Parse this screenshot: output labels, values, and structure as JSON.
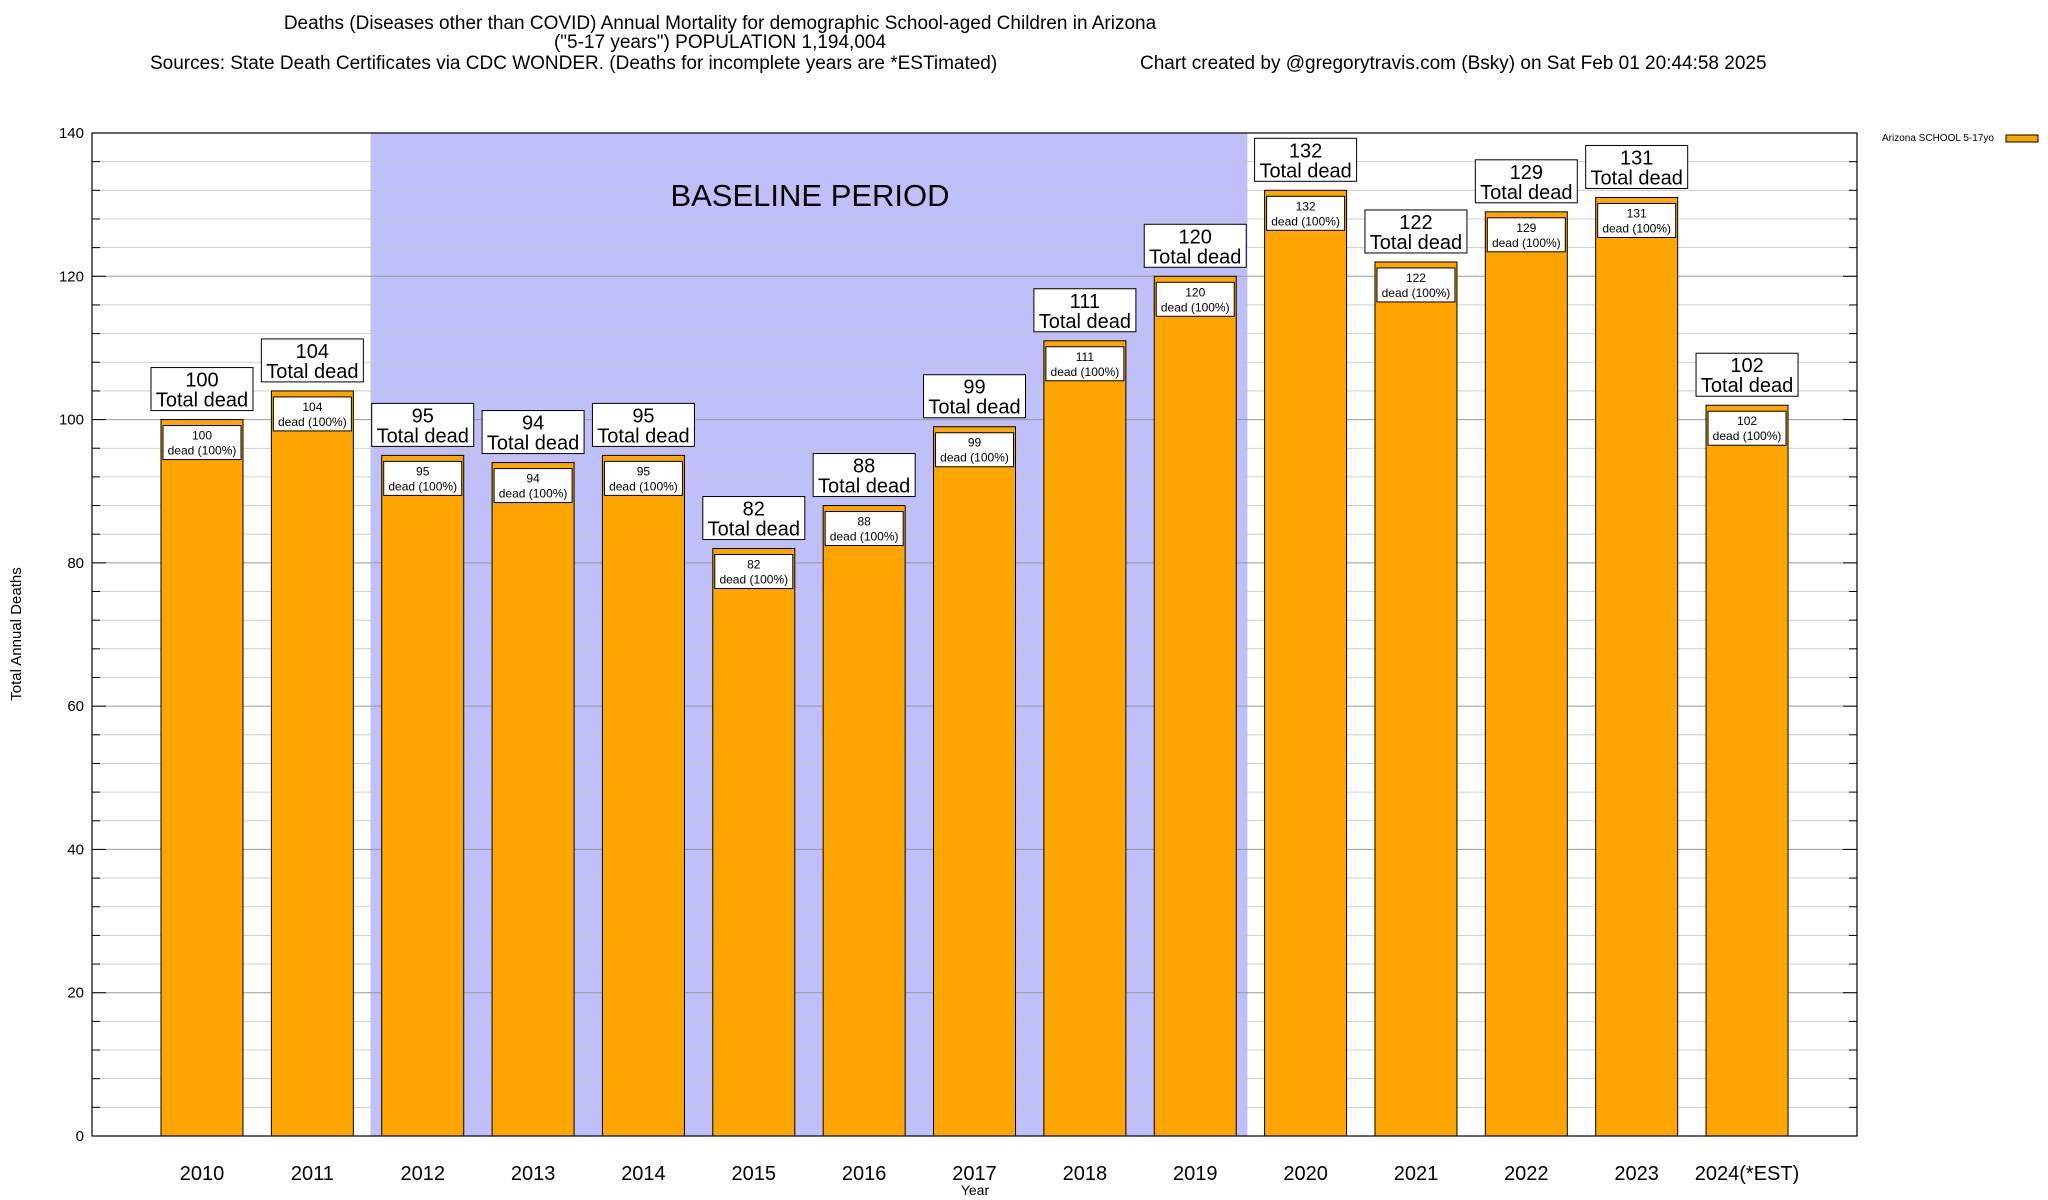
{
  "chart_data": {
    "type": "bar",
    "title": "Deaths (Diseases other than COVID) Annual Mortality for demographic School-aged Children in Arizona",
    "subtitle": "(\"5-17 years\") POPULATION 1,194,004",
    "source": "Sources: State Death Certificates via CDC WONDER. (Deaths for incomplete years are *ESTimated)",
    "credit": "Chart created by @gregorytravis.com (Bsky) on Sat Feb 01 20:44:58 2025",
    "xlabel": "Year",
    "ylabel": "Total Annual Deaths",
    "ylim": [
      0,
      140
    ],
    "yticks": [
      0,
      20,
      40,
      60,
      80,
      100,
      120,
      140
    ],
    "minor_tick_step": 4,
    "grid": true,
    "legend_position": "top-right",
    "series": [
      {
        "name": "Arizona SCHOOL 5-17yo",
        "color": "#ffa500",
        "values": [
          100,
          104,
          95,
          94,
          95,
          82,
          88,
          99,
          111,
          120,
          132,
          122,
          129,
          131,
          102
        ]
      }
    ],
    "categories": [
      "2010",
      "2011",
      "2012",
      "2013",
      "2014",
      "2015",
      "2016",
      "2017",
      "2018",
      "2019",
      "2020",
      "2021",
      "2022",
      "2023",
      "2024(*EST)"
    ],
    "top_label_suffix": "Total dead",
    "inner_label_suffix": "dead (100%)",
    "baseline_period": {
      "label": "BASELINE PERIOD",
      "start_category": "2012",
      "end_category": "2019",
      "color": "#bfbffa"
    }
  }
}
